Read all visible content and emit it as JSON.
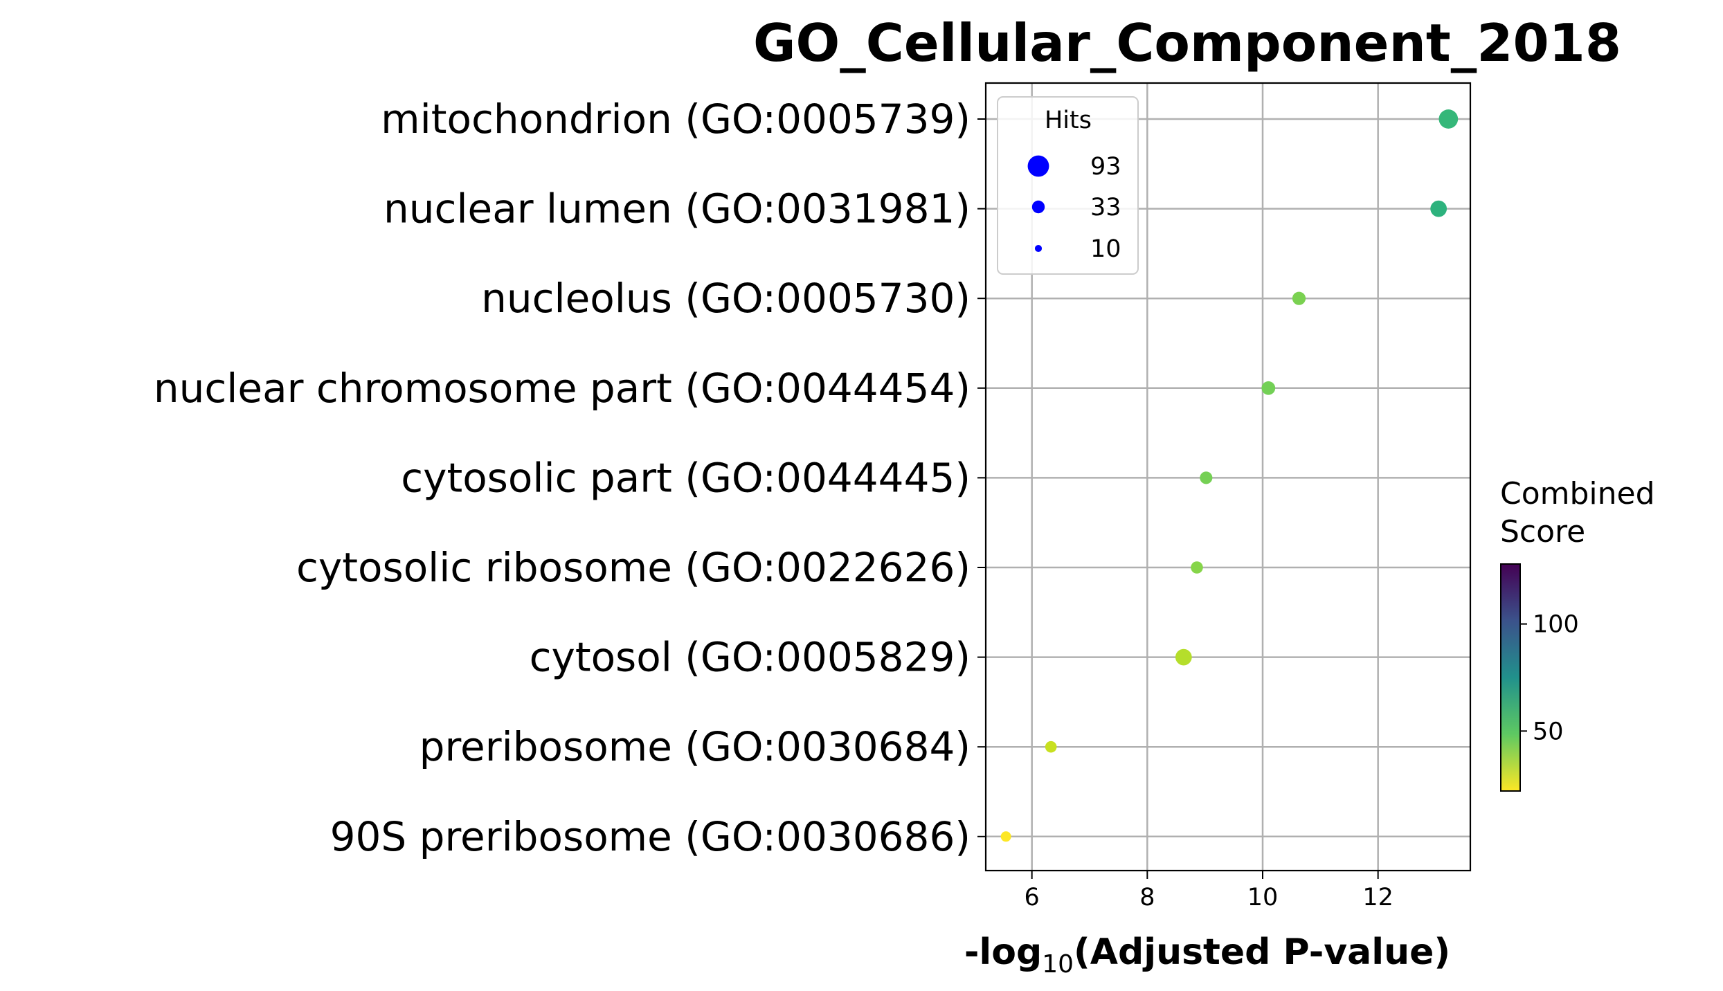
{
  "chart_data": {
    "type": "scatter",
    "title": "GO_Cellular_Component_2018",
    "xlabel_prefix": "-log",
    "xlabel_subscript": "10",
    "xlabel_suffix": "(Adjusted P-value)",
    "ylabel": "",
    "xlim": [
      5.2,
      13.6
    ],
    "x_ticks": [
      6,
      8,
      10,
      12
    ],
    "grid": true,
    "categories": [
      "mitochondrion (GO:0005739)",
      "nuclear lumen (GO:0031981)",
      "nucleolus (GO:0005730)",
      "nuclear chromosome part (GO:0044454)",
      "cytosolic part (GO:0044445)",
      "cytosolic ribosome (GO:0022626)",
      "cytosol (GO:0005829)",
      "preribosome (GO:0030684)",
      "90S preribosome (GO:0030686)"
    ],
    "points": [
      {
        "term": "mitochondrion (GO:0005739)",
        "x": 13.22,
        "hits": 75,
        "combined_score": 50,
        "color": "#35b779"
      },
      {
        "term": "nuclear lumen (GO:0031981)",
        "x": 13.05,
        "hits": 55,
        "combined_score": 58,
        "color": "#2db27d"
      },
      {
        "term": "nucleolus (GO:0005730)",
        "x": 10.63,
        "hits": 36,
        "combined_score": 37,
        "color": "#7ad151"
      },
      {
        "term": "nuclear chromosome part (GO:0044454)",
        "x": 10.1,
        "hits": 38,
        "combined_score": 38,
        "color": "#73d056"
      },
      {
        "term": "cytosolic part (GO:0044445)",
        "x": 9.02,
        "hits": 32,
        "combined_score": 38,
        "color": "#75d054"
      },
      {
        "term": "cytosolic ribosome (GO:0022626)",
        "x": 8.86,
        "hits": 30,
        "combined_score": 35,
        "color": "#86d549"
      },
      {
        "term": "cytosol (GO:0005829)",
        "x": 8.63,
        "hits": 55,
        "combined_score": 28,
        "color": "#b5de2b"
      },
      {
        "term": "preribosome (GO:0030684)",
        "x": 6.33,
        "hits": 27,
        "combined_score": 26,
        "color": "#c8e020"
      },
      {
        "term": "90S preribosome (GO:0030686)",
        "x": 5.55,
        "hits": 22,
        "combined_score": 22,
        "color": "#fde725"
      }
    ],
    "legend": {
      "title": "Hits",
      "placement": "top-left",
      "entries": [
        {
          "label": "93",
          "hits": 93
        },
        {
          "label": "33",
          "hits": 33
        },
        {
          "label": "10",
          "hits": 10
        }
      ],
      "marker_color": "#0000ff"
    },
    "colorbar": {
      "title_line1": "Combined",
      "title_line2": "Score",
      "colormap": "viridis (reversed)",
      "range": [
        22,
        128
      ],
      "ticks": [
        {
          "value": 50,
          "label": "50"
        },
        {
          "value": 100,
          "label": "100"
        }
      ],
      "stops": [
        "#fde725",
        "#5ec962",
        "#21918c",
        "#3b528b",
        "#440154"
      ]
    }
  }
}
